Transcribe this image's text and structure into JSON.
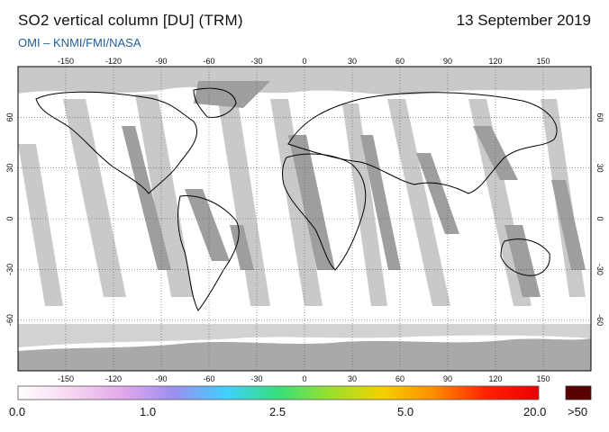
{
  "header": {
    "title": "SO2 vertical column [DU] (TRM)",
    "date": "13 September 2019",
    "credit": "OMI  –  KNMI/FMI/NASA"
  },
  "map": {
    "lon_ticks": [
      "-150",
      "-120",
      "-90",
      "-60",
      "-30",
      "0",
      "30",
      "60",
      "90",
      "120",
      "150"
    ],
    "lat_ticks": [
      "60",
      "30",
      "0",
      "-30",
      "-60"
    ],
    "colors": {
      "ocean": "#ffffff",
      "land_outline": "#000000",
      "no_data": "#c8c8c8",
      "swath_gap": "#bdbdbd",
      "orbit_dark": "#9a9a9a",
      "polar_cap": "#a8a8a8",
      "grid": "#555555"
    }
  },
  "colorbar": {
    "labels": [
      "0.0",
      "1.0",
      "2.5",
      "5.0",
      "20.0",
      ">50"
    ],
    "stops": [
      "#ffffff",
      "#f6d8f0",
      "#e3a8ec",
      "#9b8ef0",
      "#3fd0ff",
      "#35e07a",
      "#9be02c",
      "#f4d000",
      "#ff8c00",
      "#ff2000",
      "#ec0000"
    ],
    "overflow_color": "#5a0000"
  }
}
